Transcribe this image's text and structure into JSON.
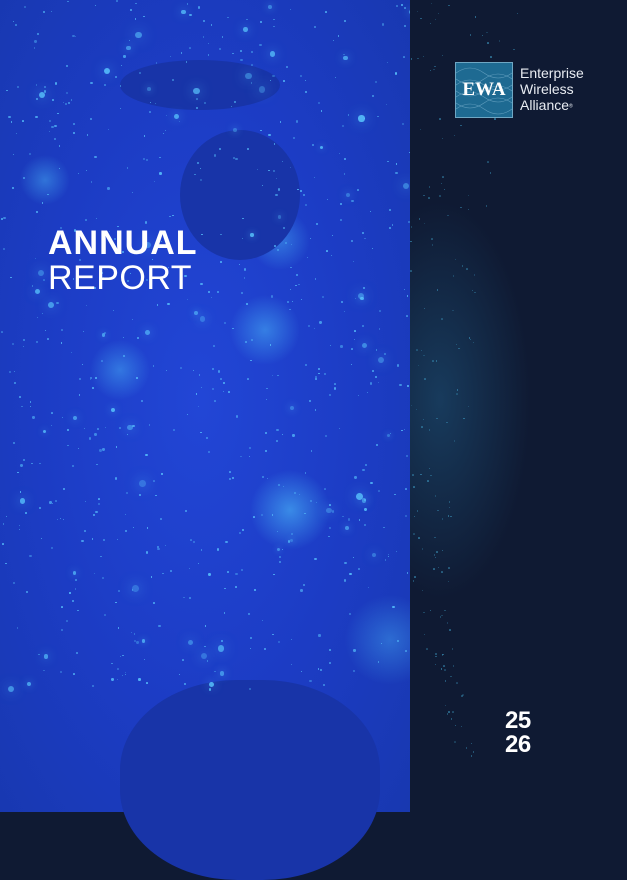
{
  "cover": {
    "title_line1": "ANNUAL",
    "title_line2": "REPORT",
    "year_line1": "25",
    "year_line2": "26"
  },
  "logo": {
    "mark": "EWA",
    "name_line1": "Enterprise",
    "name_line2": "Wireless",
    "name_line3": "Alliance",
    "registered": "®"
  },
  "colors": {
    "left_panel": "#1c3cc4",
    "right_panel": "#0f1a33",
    "city_lights": "#50c8ff",
    "logo_box": "#1e6a92"
  }
}
